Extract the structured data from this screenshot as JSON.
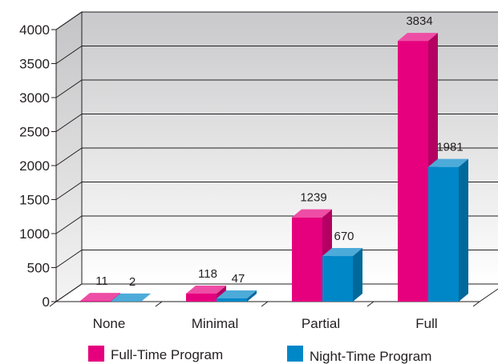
{
  "chart_data": {
    "type": "bar",
    "categories": [
      "None",
      "Minimal",
      "Partial",
      "Full"
    ],
    "series": [
      {
        "name": "Full-Time Program",
        "values": [
          11,
          118,
          1239,
          3834
        ],
        "color": "#e6007e"
      },
      {
        "name": "Night-Time Program",
        "values": [
          2,
          47,
          670,
          1981
        ],
        "color": "#0087c8"
      }
    ],
    "ylim": [
      0,
      4000
    ],
    "yticks": [
      0,
      500,
      1000,
      1500,
      2000,
      2500,
      3000,
      3500,
      4000
    ],
    "grid": true,
    "legend": "bottom",
    "style": "3d"
  }
}
